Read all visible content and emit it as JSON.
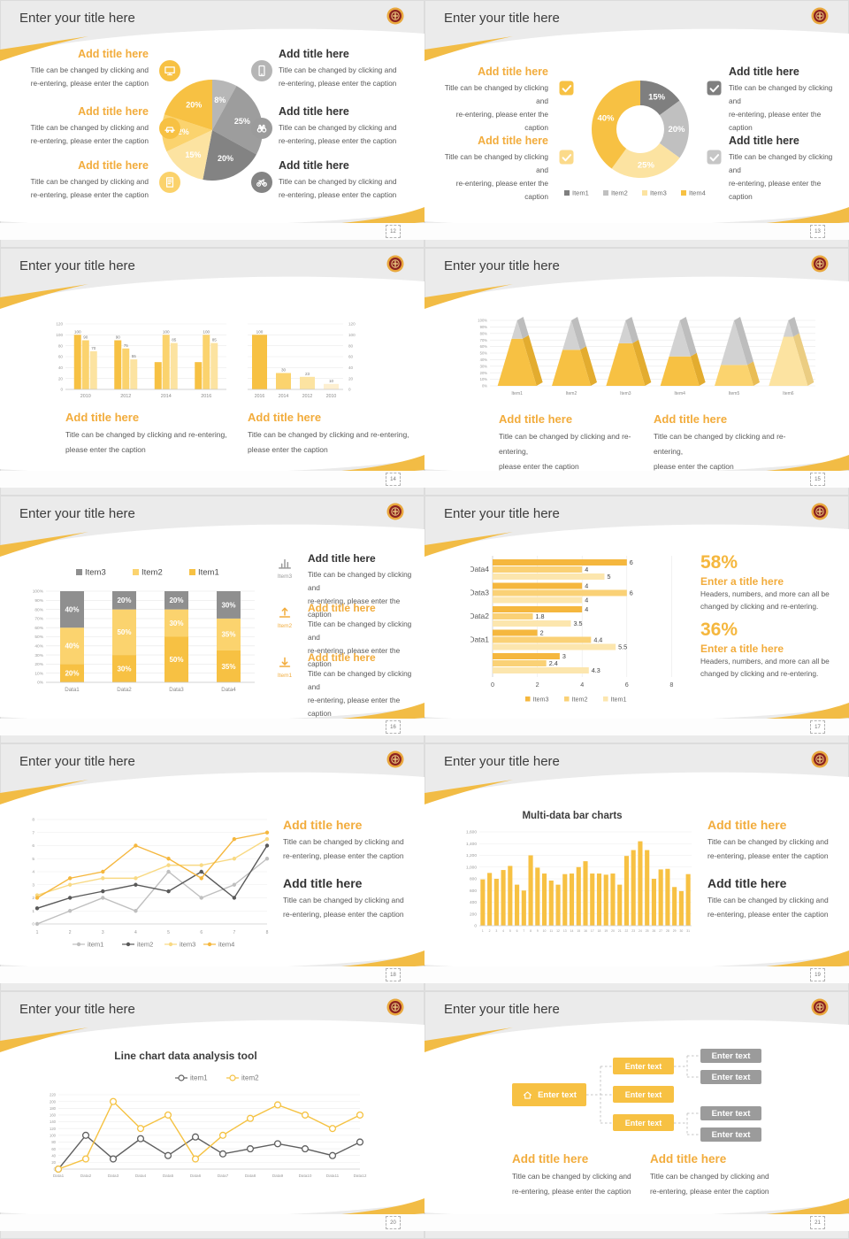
{
  "page": {
    "background": "#e6e6e6"
  },
  "common": {
    "slide_title": "Enter your title here",
    "add_title": "Add title here",
    "enter_title": "Enter a title here",
    "caption_line1": "Title can be changed by clicking and",
    "caption_line2": "re-entering, please enter the caption",
    "caption_wide1": "Title can be changed by clicking and re-entering,",
    "caption_wide2": "please enter the caption",
    "stat_caption1": "Headers, numbers, and more can all be",
    "stat_caption2": "changed by clicking and re-entering.",
    "enter_text": "Enter text",
    "logo": "school-badge-logo"
  },
  "colors": {
    "accent_title": "#F2AC3C",
    "stat_value": "#F5B73E",
    "yellow": "#F7C143",
    "yellow_mid": "#FBD36E",
    "yellow_light": "#FCE3A1",
    "yellow_pale": "#FDEFD0",
    "gray_dark": "#7F7F7F",
    "gray_mid": "#9B9B9B",
    "gray_light": "#C0C0C0",
    "text_dark": "#3D3D3D",
    "text_body": "#595959",
    "swoosh": "#F2BC45"
  },
  "slides": [
    {
      "num": "12",
      "layout": "pie-callouts",
      "left_blocks": [
        {
          "title": "Add title here",
          "icon": "monitor-icon",
          "icon_color": "#F7C143"
        },
        {
          "title": "Add title here",
          "icon": "car-icon",
          "icon_color": "#F7C143"
        },
        {
          "title": "Add title here",
          "icon": "notebook-icon",
          "icon_color": "#FBD26B"
        }
      ],
      "right_blocks": [
        {
          "title": "Add title here",
          "icon": "phone-icon",
          "icon_color": "#B5B5B5"
        },
        {
          "title": "Add title here",
          "icon": "binoculars-icon",
          "icon_color": "#9B9B9B"
        },
        {
          "title": "Add title here",
          "icon": "bicycle-icon",
          "icon_color": "#848484"
        }
      ]
    },
    {
      "num": "13",
      "layout": "donut-callouts",
      "left_blocks": [
        {
          "title": "Add title here",
          "icon": "checkbox-icon",
          "icon_color": "#F7C143"
        },
        {
          "title": "Add title here",
          "icon": "checkbox-icon",
          "icon_color": "#FBDA8A"
        }
      ],
      "right_blocks": [
        {
          "title": "Add title here",
          "icon": "checkbox-icon",
          "icon_color": "#7F7F7F"
        },
        {
          "title": "Add title here",
          "icon": "checkbox-icon",
          "icon_color": "#C6C6C6"
        }
      ]
    },
    {
      "num": "14",
      "layout": "dual-bars",
      "captions": [
        {
          "title": "Add title here"
        },
        {
          "title": "Add title here"
        }
      ]
    },
    {
      "num": "15",
      "layout": "pyramid",
      "captions": [
        {
          "title": "Add title here"
        },
        {
          "title": "Add title here"
        }
      ]
    },
    {
      "num": "16",
      "layout": "stacked",
      "right_blocks": [
        {
          "title": "Add title here",
          "icon": "bar-chart-icon",
          "item": "Item3",
          "style": "dark"
        },
        {
          "title": "Add title here",
          "icon": "upload-icon",
          "item": "Item2",
          "style": "accent"
        },
        {
          "title": "Add title here",
          "icon": "download-icon",
          "item": "Item1",
          "style": "accent"
        }
      ]
    },
    {
      "num": "17",
      "layout": "hbars",
      "stats": [
        {
          "value": "58%",
          "title": "Enter a title here"
        },
        {
          "value": "36%",
          "title": "Enter a title here"
        }
      ]
    },
    {
      "num": "18",
      "layout": "lines4",
      "right_blocks": [
        {
          "title": "Add title here",
          "style": "accent"
        },
        {
          "title": "Add title here",
          "style": "dark"
        }
      ]
    },
    {
      "num": "19",
      "layout": "multibar",
      "right_blocks": [
        {
          "title": "Add title here",
          "style": "accent"
        },
        {
          "title": "Add title here",
          "style": "dark"
        }
      ]
    },
    {
      "num": "20",
      "layout": "lines2"
    },
    {
      "num": "21",
      "layout": "orgchart",
      "captions": [
        {
          "title": "Add title here"
        },
        {
          "title": "Add title here"
        }
      ],
      "diagram": {
        "root": {
          "label": "Enter text",
          "icon": "home-icon"
        },
        "children": [
          "Enter text",
          "Enter text",
          "Enter text"
        ],
        "leaves": [
          "Enter text",
          "Enter text",
          "Enter text",
          "Enter text"
        ]
      }
    }
  ],
  "chart_data": [
    {
      "slide": "12",
      "type": "pie",
      "start": "top",
      "direction": "clockwise",
      "values": [
        8,
        25,
        20,
        15,
        12,
        20
      ],
      "labels": [
        "8%",
        "25%",
        "20%",
        "15%",
        "12%",
        "20%"
      ],
      "colors": [
        "#B7B7B7",
        "#9D9D9D",
        "#838383",
        "#FCE3A1",
        "#FBD36E",
        "#F7C143"
      ]
    },
    {
      "slide": "13",
      "type": "pie",
      "donut": true,
      "values": [
        15,
        20,
        25,
        40
      ],
      "labels": [
        "15%",
        "20%",
        "25%",
        "40%"
      ],
      "colors": [
        "#7F7F7F",
        "#C0C0C0",
        "#FCE3A1",
        "#F7C143"
      ],
      "legend": [
        {
          "label": "Item1",
          "color": "#7F7F7F"
        },
        {
          "label": "Item2",
          "color": "#C0C0C0"
        },
        {
          "label": "Item3",
          "color": "#FCE3A1"
        },
        {
          "label": "Item4",
          "color": "#F7C143"
        }
      ]
    },
    {
      "slide": "14",
      "position": "left",
      "type": "bar",
      "categories": [
        "2010",
        "2012",
        "2014",
        "2016"
      ],
      "series": [
        {
          "name": "series1",
          "color": "#F7C143",
          "values": [
            100,
            90,
            50,
            50
          ],
          "labels": [
            "100",
            "90",
            "",
            ""
          ]
        },
        {
          "name": "series2",
          "color": "#FBD36E",
          "values": [
            90,
            75,
            100,
            100
          ],
          "labels": [
            "90",
            "75",
            "100",
            "100"
          ]
        },
        {
          "name": "series3",
          "color": "#FCE3A1",
          "values": [
            70,
            55,
            85,
            85
          ],
          "labels": [
            "70",
            "55",
            "85",
            "85"
          ]
        }
      ],
      "ylim": [
        0,
        120
      ],
      "yticks": [
        "0",
        "20",
        "40",
        "60",
        "80",
        "100",
        "120"
      ]
    },
    {
      "slide": "14",
      "position": "right",
      "type": "bar",
      "categories": [
        "2016",
        "2014",
        "2012",
        "2010"
      ],
      "values": [
        100,
        30,
        23,
        10
      ],
      "labels": [
        "100",
        "30",
        "23",
        "10"
      ],
      "bar_colors": [
        "#F7C143",
        "#FBD36E",
        "#FCE3A1",
        "#FDEFD0"
      ],
      "ylim": [
        0,
        120
      ],
      "yticks": [
        "0",
        "20",
        "40",
        "60",
        "80",
        "100",
        "120"
      ],
      "y_axis_side": "right"
    },
    {
      "slide": "15",
      "type": "bar",
      "subtype": "pyramid-3d",
      "categories": [
        "Item1",
        "Item2",
        "Item3",
        "Item4",
        "Item5",
        "Item6"
      ],
      "filled_values": [
        72,
        55,
        65,
        45,
        32,
        75
      ],
      "filled_colors": [
        "#F7C143",
        "#F7C143",
        "#F7C143",
        "#F7C143",
        "#FBD36E",
        "#FCE3A1"
      ],
      "top_color": "#D2D2D2",
      "ylim": [
        0,
        100
      ],
      "yticks": [
        "0%",
        "10%",
        "20%",
        "30%",
        "40%",
        "50%",
        "60%",
        "70%",
        "80%",
        "90%",
        "100%"
      ]
    },
    {
      "slide": "16",
      "type": "bar",
      "subtype": "stacked-100",
      "categories": [
        "Data1",
        "Data2",
        "Data3",
        "Data4"
      ],
      "series": [
        {
          "name": "Item1",
          "color": "#F7C143",
          "values": [
            20,
            30,
            50,
            35
          ]
        },
        {
          "name": "Item2",
          "color": "#FBD36E",
          "values": [
            40,
            50,
            30,
            35
          ]
        },
        {
          "name": "Item3",
          "color": "#8F8F8F",
          "values": [
            40,
            20,
            20,
            30
          ]
        }
      ],
      "legend_order": [
        "Item3",
        "Item2",
        "Item1"
      ],
      "ylim": [
        0,
        100
      ],
      "yticks": [
        "0%",
        "10%",
        "20%",
        "30%",
        "40%",
        "50%",
        "60%",
        "70%",
        "80%",
        "90%",
        "100%"
      ]
    },
    {
      "slide": "17",
      "type": "bar",
      "subtype": "horizontal-grouped",
      "groups": [
        {
          "label": "Data4",
          "values": [
            6,
            4,
            5
          ]
        },
        {
          "label": "Data3",
          "values": [
            4,
            6,
            4
          ]
        },
        {
          "label": "Data2",
          "values": [
            4,
            1.8,
            3.5
          ]
        },
        {
          "label": "Data1",
          "values": [
            2,
            4.4,
            5.5
          ]
        },
        {
          "label": "",
          "values": [
            3,
            2.4,
            4.3
          ]
        }
      ],
      "series_names": [
        "Item3",
        "Item2",
        "Item1"
      ],
      "series_colors": [
        "#F5B73E",
        "#FAD176",
        "#FCE6AE"
      ],
      "xlim": [
        0,
        8
      ],
      "xticks": [
        "0",
        "2",
        "4",
        "6",
        "8"
      ]
    },
    {
      "slide": "18",
      "type": "line",
      "x": [
        "1",
        "2",
        "3",
        "4",
        "5",
        "6",
        "7",
        "8"
      ],
      "series": [
        {
          "name": "item1",
          "color": "#BFBFBF",
          "values": [
            0,
            1,
            2,
            1,
            4,
            2,
            3,
            5
          ]
        },
        {
          "name": "item2",
          "color": "#595959",
          "values": [
            1.2,
            2,
            2.5,
            3,
            2.5,
            4,
            2,
            6
          ]
        },
        {
          "name": "item3",
          "color": "#F8D983",
          "values": [
            2.2,
            3,
            3.5,
            3.5,
            4.5,
            4.5,
            5,
            6.5
          ]
        },
        {
          "name": "item4",
          "color": "#F5B73E",
          "values": [
            2,
            3.5,
            4,
            6,
            5,
            3.5,
            6.5,
            7
          ]
        }
      ],
      "ylim": [
        0,
        8
      ],
      "yticks": [
        "0",
        "1",
        "2",
        "3",
        "4",
        "5",
        "6",
        "7",
        "8"
      ]
    },
    {
      "slide": "19",
      "type": "bar",
      "title": "Multi-data bar charts",
      "color": "#F7C143",
      "x_labels": [
        "1",
        "2",
        "3",
        "4",
        "5",
        "6",
        "7",
        "8",
        "9",
        "10",
        "11",
        "12",
        "13",
        "14",
        "15",
        "16",
        "17",
        "18",
        "19",
        "20",
        "21",
        "22",
        "23",
        "24",
        "25",
        "26",
        "27",
        "28",
        "29",
        "30",
        "31"
      ],
      "values": [
        790,
        900,
        800,
        950,
        1020,
        700,
        600,
        1200,
        990,
        890,
        770,
        700,
        880,
        890,
        1000,
        1100,
        890,
        890,
        870,
        890,
        700,
        1190,
        1290,
        1440,
        1290,
        800,
        960,
        970,
        660,
        590,
        880
      ],
      "ylim": [
        0,
        1600
      ],
      "yticks": [
        "0",
        "200",
        "400",
        "600",
        "800",
        "1,000",
        "1,200",
        "1,400",
        "1,600"
      ]
    },
    {
      "slide": "20",
      "type": "line",
      "title": "Line chart data analysis tool",
      "marker": "open-circle",
      "x": [
        "Data1",
        "Data2",
        "Data3",
        "Data4",
        "Data5",
        "Data6",
        "Data7",
        "Data8",
        "Data9",
        "Data10",
        "Data11",
        "Data12"
      ],
      "series": [
        {
          "name": "item1",
          "color": "#5F5F5F",
          "values": [
            0,
            100,
            30,
            90,
            40,
            95,
            45,
            60,
            75,
            60,
            40,
            80
          ]
        },
        {
          "name": "item2",
          "color": "#F5C242",
          "values": [
            0,
            30,
            200,
            120,
            160,
            30,
            100,
            150,
            190,
            160,
            120,
            160
          ]
        }
      ],
      "ylim": [
        0,
        220
      ],
      "yticks": [
        "0",
        "20",
        "40",
        "60",
        "80",
        "100",
        "120",
        "140",
        "160",
        "180",
        "200",
        "220"
      ]
    }
  ]
}
